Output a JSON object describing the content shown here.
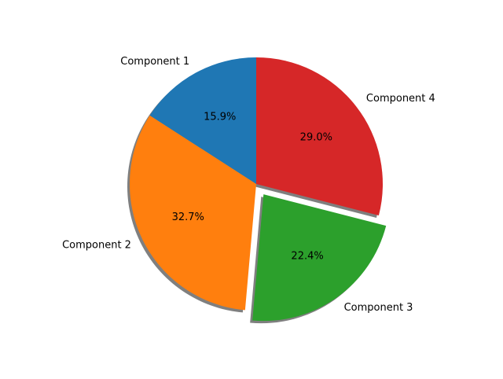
{
  "chart_data": {
    "type": "pie",
    "categories": [
      "Component 1",
      "Component 2",
      "Component 3",
      "Component 4"
    ],
    "values": [
      15.9,
      32.7,
      22.4,
      29.0
    ],
    "value_labels": [
      "15.9%",
      "32.7%",
      "22.4%",
      "29.0%"
    ],
    "colors": [
      "#1f77b4",
      "#ff7f0e",
      "#2ca02c",
      "#d62728"
    ],
    "explode": [
      0,
      0,
      0.1,
      0
    ],
    "start_angle": 90,
    "shadow": true
  }
}
